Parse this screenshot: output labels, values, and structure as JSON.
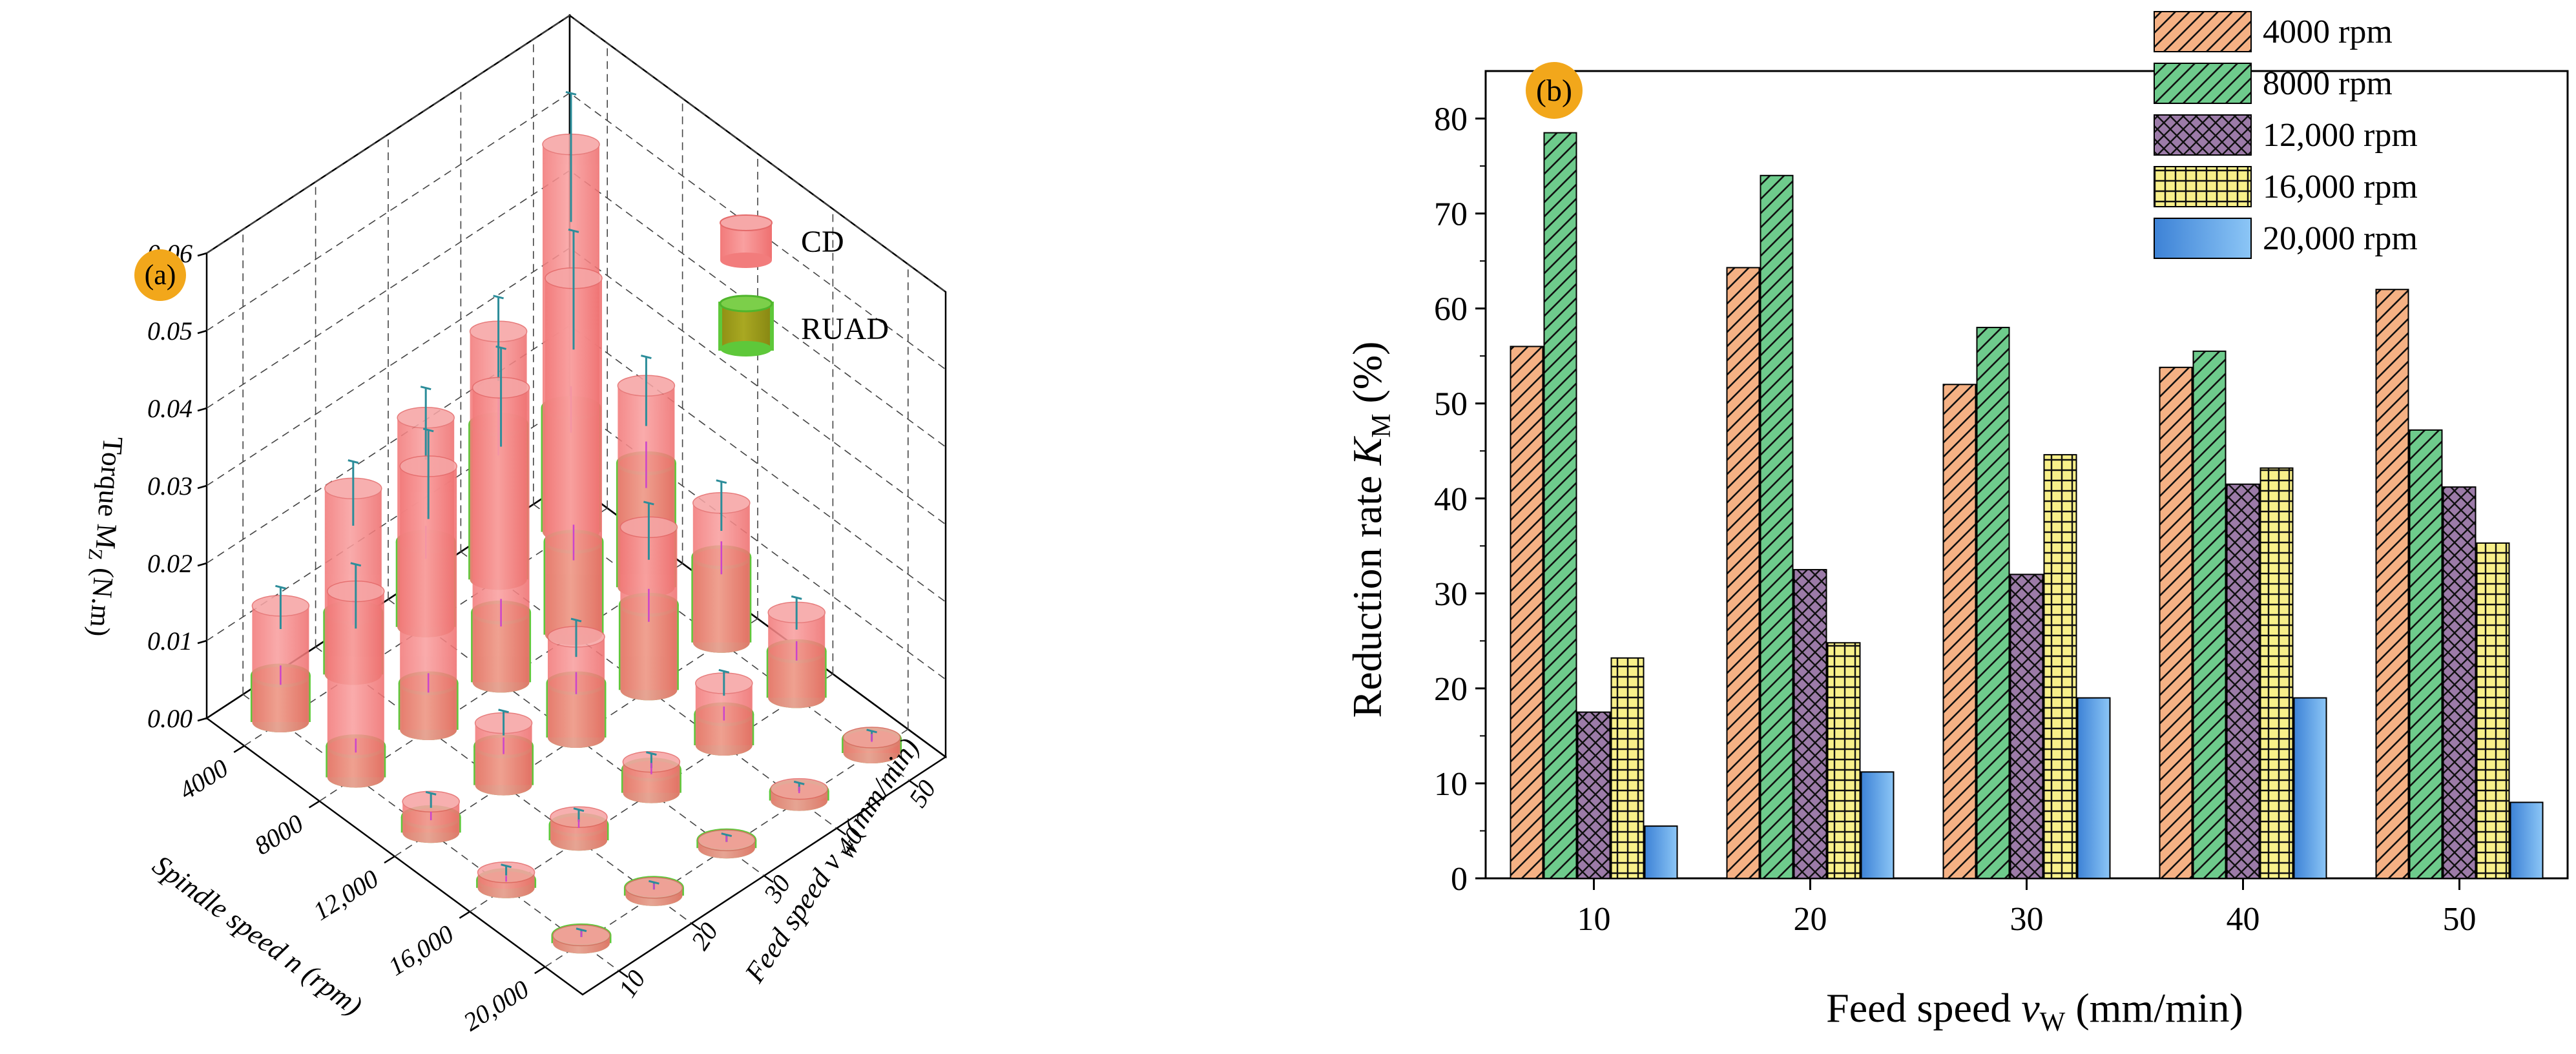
{
  "chart_data": [
    {
      "panel_label": "(a)",
      "type": "bar3d",
      "zlabel": "Torque M",
      "zlabel_sub": "Z",
      "zlabel_unit": " (N.m)",
      "xlabel_pre": "Spindle speed ",
      "xlabel_var": "n",
      "xlabel_post": " (rpm)",
      "ylabel_pre": "Feed speed ",
      "ylabel_var": "v",
      "ylabel_sub": " W",
      "ylabel_post": " (mm/min)",
      "z_ticks": [
        "0.00",
        "0.01",
        "0.02",
        "0.03",
        "0.04",
        "0.05",
        "0.06"
      ],
      "zlim": [
        0,
        0.06
      ],
      "spindle_ticks": [
        "4000",
        "8000",
        "12,000",
        "16,000",
        "20,000"
      ],
      "feed_ticks": [
        "10",
        "20",
        "30",
        "40",
        "50"
      ],
      "legend": [
        "CD",
        "RUAD"
      ],
      "colors": {
        "CD": "#f38080",
        "CD_top": "#f6a5a5",
        "RUAD": "#9a9a18",
        "RUAD_edge": "#5ec83a",
        "RUAD_top": "#b48a30",
        "err_cd": "#2c8d9a",
        "err_ruad": "#cc44cc"
      },
      "series": [
        {
          "name": "CD",
          "values": [
            [
              0.015,
              0.024,
              0.027,
              0.032,
              0.05
            ],
            [
              0.024,
              0.034,
              0.038,
              0.046,
              0.026
            ],
            [
              0.004,
              0.008,
              0.013,
              0.021,
              0.018
            ],
            [
              0.002,
              0.003,
              0.004,
              0.008,
              0.011
            ],
            [
              0.001,
              0.001,
              0.001,
              0.0015,
              0.002
            ]
          ]
        },
        {
          "name": "RUAD",
          "values": [
            [
              0.006,
              0.008,
              0.011,
              0.02,
              0.016
            ],
            [
              0.004,
              0.006,
              0.009,
              0.012,
              0.016
            ],
            [
              0.002,
              0.005,
              0.007,
              0.011,
              0.011
            ],
            [
              0.001,
              0.002,
              0.003,
              0.004,
              0.006
            ],
            [
              0.001,
              0.001,
              0.001,
              0.0012,
              0.0018
            ]
          ]
        }
      ]
    },
    {
      "panel_label": "(b)",
      "type": "bar",
      "ylabel_pre": "Reduction rate ",
      "ylabel_var": "K",
      "ylabel_sub": "M",
      "ylabel_post": " (%)",
      "xlabel_pre": "Feed speed ",
      "xlabel_var": "v",
      "xlabel_sub": "W",
      "xlabel_post": " (mm/min)",
      "categories": [
        "10",
        "20",
        "30",
        "40",
        "50"
      ],
      "ylim": [
        0,
        85
      ],
      "y_ticks": [
        "0",
        "10",
        "20",
        "30",
        "40",
        "50",
        "60",
        "70",
        "80"
      ],
      "series": [
        {
          "name": "4000 rpm",
          "values": [
            56,
            64.3,
            52,
            53.8,
            62
          ],
          "color": "#f5b184",
          "pattern": "diag"
        },
        {
          "name": "8000 rpm",
          "values": [
            78.5,
            74,
            58,
            55.5,
            47.2
          ],
          "color": "#6ecb8c",
          "pattern": "diag"
        },
        {
          "name": "12,000 rpm",
          "values": [
            17.5,
            32.5,
            32,
            41.5,
            41.2
          ],
          "color": "#9c7ba8",
          "pattern": "cross"
        },
        {
          "name": "16,000 rpm",
          "values": [
            23.2,
            24.8,
            44.6,
            43.2,
            35.3
          ],
          "color": "#f8f08a",
          "pattern": "grid"
        },
        {
          "name": "20,000 rpm",
          "values": [
            5.5,
            11.2,
            19,
            19,
            8
          ],
          "color": "#6bb2ee",
          "pattern": "grad"
        }
      ]
    }
  ]
}
